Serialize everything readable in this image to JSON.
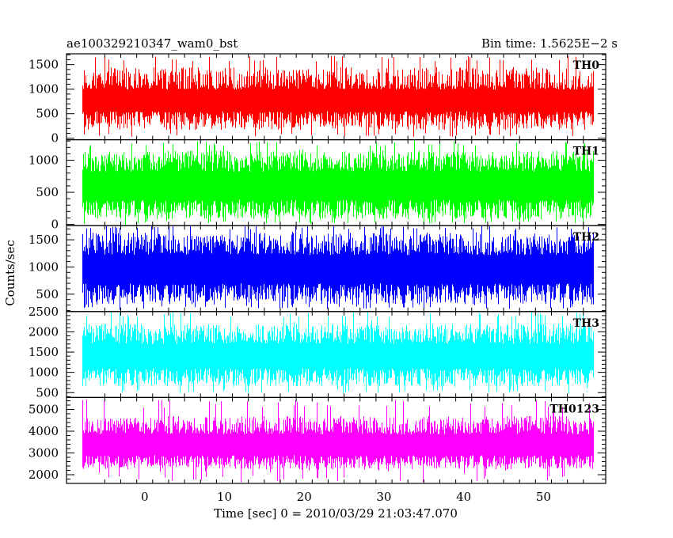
{
  "header": {
    "obs_id": "ae100329210347_wam0_bst",
    "bin_time": "Bin time: 1.5625E−2 s"
  },
  "axes": {
    "xlabel": "Time [sec] 0 = 2010/03/29 21:03:47.070",
    "ylabel": "Counts/sec"
  },
  "chart_data": {
    "type": "line",
    "style": "dense light curve (bin-to-bin variation rendered as filled noise band)",
    "bin_time_s": 0.015625,
    "time_range": [
      -7.8,
      56.2
    ],
    "xlim": [
      -9.8,
      57.8
    ],
    "xticks": [
      0,
      10,
      20,
      30,
      40,
      50
    ],
    "grid": false,
    "legend": "none; each panel labelled at top-right",
    "panels": [
      {
        "name": "TH0",
        "color": "#ff0000",
        "ylim": [
          -30,
          1720
        ],
        "yticks": [
          0,
          500,
          1000,
          1500
        ],
        "typical_level": 770,
        "typical_spread": 220,
        "envelope": [
          170,
          1450
        ],
        "extremes": [
          25,
          1680
        ]
      },
      {
        "name": "TH1",
        "color": "#00ff00",
        "ylim": [
          -20,
          1320
        ],
        "yticks": [
          0,
          500,
          1000
        ],
        "typical_level": 600,
        "typical_spread": 220,
        "envelope": [
          80,
          1150
        ],
        "extremes": [
          10,
          1300
        ]
      },
      {
        "name": "TH2",
        "color": "#0000ff",
        "ylim": [
          180,
          1760
        ],
        "yticks": [
          500,
          1000,
          1500
        ],
        "typical_level": 960,
        "typical_spread": 260,
        "envelope": [
          310,
          1630
        ],
        "extremes": [
          230,
          1760
        ]
      },
      {
        "name": "TH3",
        "color": "#00ffff",
        "ylim": [
          380,
          2500
        ],
        "yticks": [
          500,
          1000,
          1500,
          2000,
          2500
        ],
        "typical_level": 1400,
        "typical_spread": 300,
        "envelope": [
          650,
          2200
        ],
        "extremes": [
          470,
          2500
        ]
      },
      {
        "name": "TH0123",
        "color": "#ff00ff",
        "ylim": [
          1600,
          5550
        ],
        "yticks": [
          2000,
          3000,
          4000,
          5000
        ],
        "typical_level": 3380,
        "typical_spread": 480,
        "envelope": [
          2250,
          4700
        ],
        "extremes": [
          1650,
          5450
        ]
      }
    ]
  }
}
